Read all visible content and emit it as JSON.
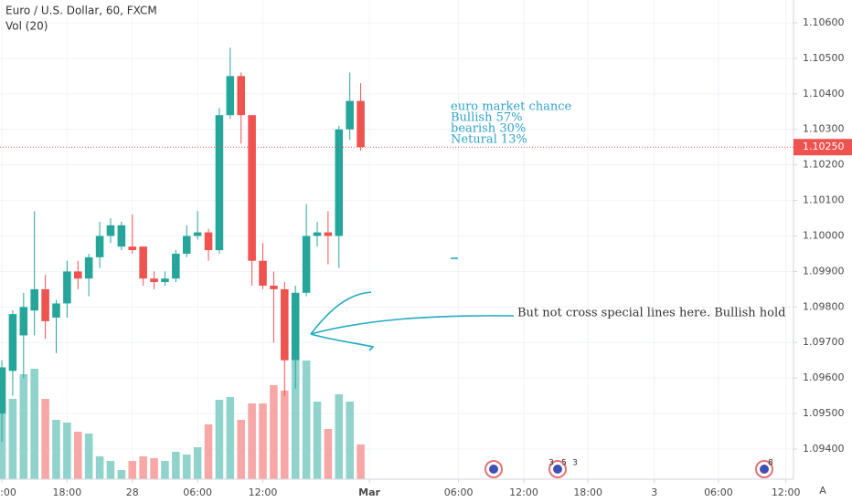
{
  "chart_data": {
    "type": "candlestick",
    "title": "Euro / U.S. Dollar, 60, FXCM",
    "volume_label": "Vol (20)",
    "colors": {
      "up": "#26a69a",
      "down": "#ef5350",
      "up_volume": "#8fd3cc",
      "down_volume": "#f7a7a5"
    },
    "grid": true,
    "ylim": [
      1.093152,
      1.106642
    ],
    "yticks": [
      {
        "value": 1.106,
        "label": "1.10600"
      },
      {
        "value": 1.105,
        "label": "1.10500"
      },
      {
        "value": 1.104,
        "label": "1.10400"
      },
      {
        "value": 1.103,
        "label": "1.10300"
      },
      {
        "value": 1.102,
        "label": "1.10200"
      },
      {
        "value": 1.101,
        "label": "1.10100"
      },
      {
        "value": 1.1,
        "label": "1.10000"
      },
      {
        "value": 1.099,
        "label": "1.09900"
      },
      {
        "value": 1.098,
        "label": "1.09800"
      },
      {
        "value": 1.097,
        "label": "1.09700"
      },
      {
        "value": 1.096,
        "label": "1.09600"
      },
      {
        "value": 1.095,
        "label": "1.09500"
      },
      {
        "value": 1.094,
        "label": "1.09400"
      }
    ],
    "xlim": [
      -0.17,
      72.8
    ],
    "xticks": [
      {
        "value": 0,
        "label": "12:00"
      },
      {
        "value": 6,
        "label": "18:00"
      },
      {
        "value": 12,
        "label": "28"
      },
      {
        "value": 18,
        "label": "06:00"
      },
      {
        "value": 24,
        "label": "12:00"
      },
      {
        "value": 33.8,
        "label": "Mar"
      },
      {
        "value": 42,
        "label": "06:00"
      },
      {
        "value": 48,
        "label": "12:00"
      },
      {
        "value": 53.9,
        "label": "18:00"
      },
      {
        "value": 60,
        "label": "3"
      },
      {
        "value": 65.9,
        "label": "06:00"
      },
      {
        "value": 72.1,
        "label": "12:00"
      }
    ],
    "open": [
      1.095,
      1.0962,
      1.0972,
      1.0979,
      1.0985,
      1.0977,
      1.0981,
      1.099,
      1.0988,
      1.0994,
      1.1,
      1.0997,
      1.0997,
      1.0997,
      1.0988,
      1.0987,
      1.0988,
      1.0995,
      1.1,
      1.1001,
      1.0996,
      1.1034,
      1.1045,
      1.1034,
      1.0993,
      1.0986,
      1.0985,
      1.0965,
      1.0984,
      1.1,
      1.1001,
      1.1,
      1.103,
      1.1038
    ],
    "high": [
      1.0965,
      1.0979,
      1.0984,
      1.1007,
      1.0989,
      1.0982,
      1.0993,
      1.0993,
      1.0995,
      1.1004,
      1.1005,
      1.1004,
      1.1006,
      1.0997,
      1.099,
      1.099,
      1.0996,
      1.1003,
      1.1007,
      1.1002,
      1.1036,
      1.1053,
      1.1046,
      1.1034,
      1.0998,
      1.099,
      1.0987,
      1.0986,
      1.1009,
      1.1004,
      1.1007,
      1.1031,
      1.1046,
      1.1043
    ],
    "low": [
      1.0942,
      1.0955,
      1.096,
      1.0972,
      1.0971,
      1.0967,
      1.0977,
      1.0985,
      1.0983,
      1.0991,
      1.0998,
      1.0996,
      1.0995,
      1.0986,
      1.0985,
      1.0986,
      1.0987,
      1.0994,
      1.0999,
      1.0993,
      1.0995,
      1.1033,
      1.1026,
      1.0986,
      1.0985,
      1.097,
      1.0955,
      1.0957,
      1.0983,
      1.0997,
      1.0992,
      1.0991,
      1.1027,
      1.1024
    ],
    "close": [
      1.0963,
      1.0978,
      1.098,
      1.0985,
      1.0976,
      1.0981,
      1.099,
      1.0988,
      1.0994,
      1.1,
      1.1003,
      1.1003,
      1.0996,
      1.0988,
      1.0987,
      1.0988,
      1.0995,
      1.1,
      1.1001,
      1.0996,
      1.1034,
      1.1045,
      1.1034,
      1.0993,
      1.0986,
      1.0985,
      1.0965,
      1.0984,
      1.1,
      1.1001,
      1.1,
      1.103,
      1.1038,
      1.1025
    ],
    "volume": [
      85,
      88,
      115,
      121,
      88,
      65,
      62,
      52,
      50,
      25,
      20,
      10,
      20,
      25,
      23,
      20,
      30,
      27,
      35,
      60,
      87,
      90,
      65,
      83,
      83,
      103,
      97,
      130,
      130,
      85,
      55,
      93,
      85,
      38
    ],
    "vol_ylim": [
      0,
      525
    ],
    "last_price": {
      "value": 1.1025,
      "label": "1.10250"
    },
    "annotations": {
      "market": [
        "euro market chance",
        "Bullish 57%",
        "bearish 30%",
        "Netural  13%"
      ],
      "note": "But not cross special lines here. Bullish hold"
    },
    "events": [
      "3",
      "5",
      "3",
      "8"
    ],
    "auto_button": "A"
  }
}
